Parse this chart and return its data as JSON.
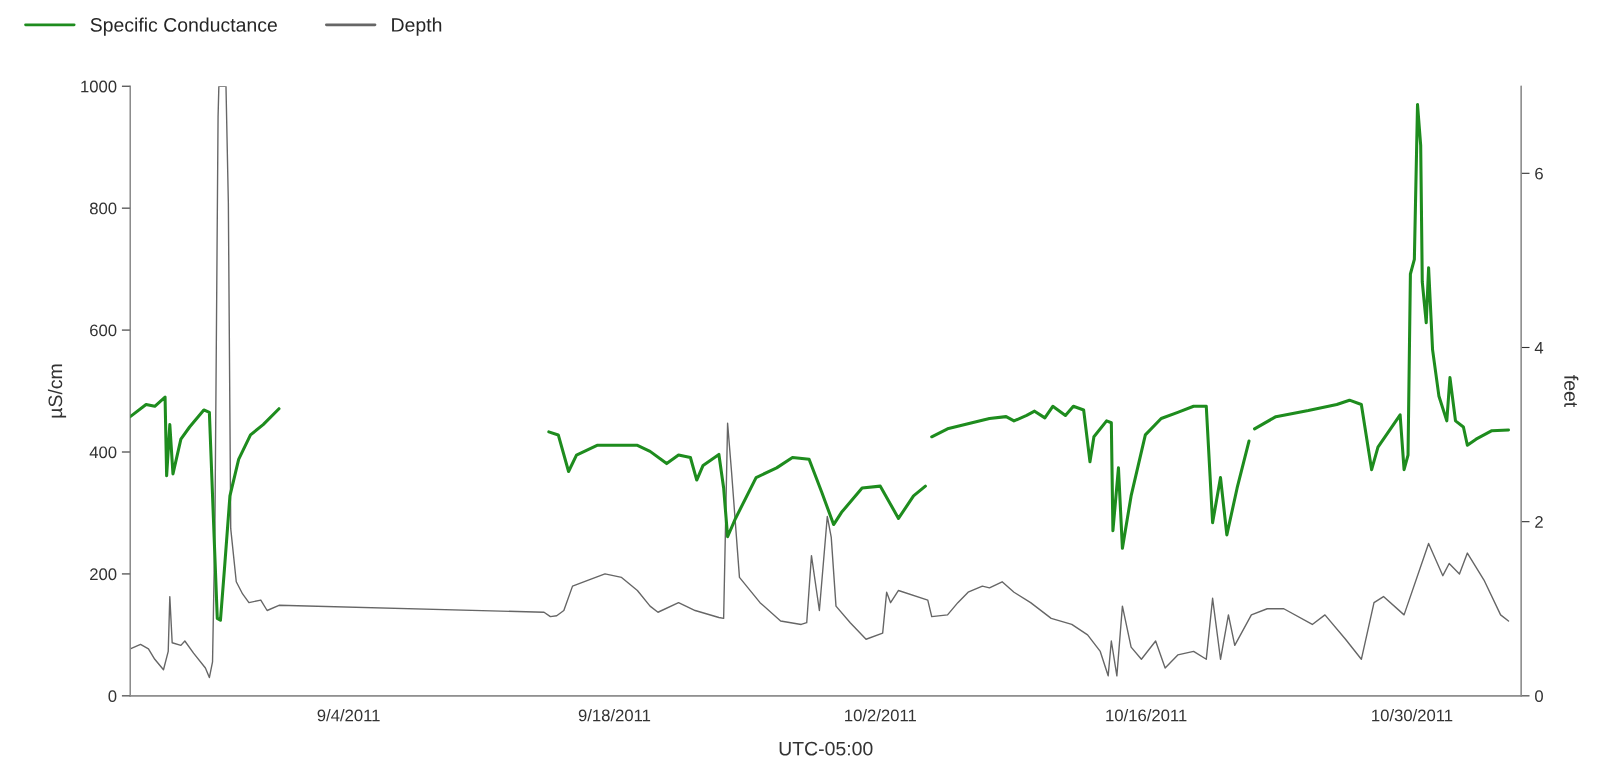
{
  "chart_data": {
    "type": "line",
    "xlabel": "UTC-05:00",
    "ylabel": "µS/cm",
    "y2label": "feet",
    "xlim": [
      "2011-08-23T12:00",
      "2011-11-04T18:00"
    ],
    "xticks": [
      {
        "value": "2011-09-04",
        "label": "9/4/2011"
      },
      {
        "value": "2011-09-18",
        "label": "9/18/2011"
      },
      {
        "value": "2011-10-02",
        "label": "10/2/2011"
      },
      {
        "value": "2011-10-16",
        "label": "10/16/2011"
      },
      {
        "value": "2011-10-30",
        "label": "10/30/2011"
      }
    ],
    "ylim": [
      0,
      1000
    ],
    "yticks": [
      0,
      200,
      400,
      600,
      800,
      1000
    ],
    "y2lim": [
      0,
      7
    ],
    "y2ticks": [
      0,
      2,
      4,
      6
    ],
    "grid": false,
    "legend": "top left",
    "marker": "none",
    "line_style": "solid",
    "series": [
      {
        "name": "Specific Conductance",
        "color": "#1e8c1e",
        "x": [
          "2011-08-23T12:00",
          "2011-08-24T08:00",
          "2011-08-24T19:00",
          "2011-08-25T08:00",
          "2011-08-25T10:00",
          "2011-08-25T14:00",
          "2011-08-25T18:00",
          "2011-08-26T04:00",
          "2011-08-26T15:00",
          "2011-08-27T09:00",
          "2011-08-27T16:00",
          "2011-08-27T22:00",
          "2011-08-28T02:00",
          "2011-08-28T06:00",
          "2011-08-28T11:00",
          "2011-08-28T18:00",
          "2011-08-29T05:00",
          "2011-08-29T20:00",
          "2011-08-30T12:00",
          "2011-08-31T08:00",
          "2011-09-07T00:00",
          "2011-09-14T13:00",
          "2011-09-15T01:00",
          "2011-09-15T14:00",
          "2011-09-16T00:00",
          "2011-09-17T02:00",
          "2011-09-18T04:00",
          "2011-09-19T05:00",
          "2011-09-19T21:00",
          "2011-09-20T18:00",
          "2011-09-21T09:00",
          "2011-09-22T00:00",
          "2011-09-22T08:00",
          "2011-09-22T16:00",
          "2011-09-23T12:00",
          "2011-09-23T18:00",
          "2011-09-23T23:00",
          "2011-09-24T09:00",
          "2011-09-25T11:00",
          "2011-09-26T13:00",
          "2011-09-27T09:00",
          "2011-09-28T06:00",
          "2011-09-28T22:00",
          "2011-09-29T13:00",
          "2011-09-29T23:00",
          "2011-10-01T01:00",
          "2011-10-02T00:00",
          "2011-10-02T23:00",
          "2011-10-03T18:00",
          "2011-10-04T09:00",
          "2011-10-04T13:00",
          "2011-10-04T17:00",
          "2011-10-05T13:00",
          "2011-10-06T20:00",
          "2011-10-07T18:00",
          "2011-10-08T15:00",
          "2011-10-09T01:00",
          "2011-10-09T17:00",
          "2011-10-10T03:00",
          "2011-10-10T16:00",
          "2011-10-11T02:00",
          "2011-10-11T18:00",
          "2011-10-12T04:00",
          "2011-10-12T17:00",
          "2011-10-13T01:00",
          "2011-10-13T06:00",
          "2011-10-13T22:00",
          "2011-10-14T04:00",
          "2011-10-14T06:00",
          "2011-10-14T13:00",
          "2011-10-14T18:00",
          "2011-10-15T05:00",
          "2011-10-15T23:00",
          "2011-10-16T19:00",
          "2011-10-17T16:00",
          "2011-10-18T12:00",
          "2011-10-19T04:00",
          "2011-10-19T12:00",
          "2011-10-19T22:00",
          "2011-10-20T06:00",
          "2011-10-20T19:00",
          "2011-10-21T10:00",
          "2011-10-21T14:00",
          "2011-10-21T17:00",
          "2011-10-22T20:00",
          "2011-10-24T13:00",
          "2011-10-26T01:00",
          "2011-10-26T17:00",
          "2011-10-27T08:00",
          "2011-10-27T21:00",
          "2011-10-28T05:00",
          "2011-10-29T09:00",
          "2011-10-29T14:00",
          "2011-10-29T19:00",
          "2011-10-29T22:00",
          "2011-10-30T03:00",
          "2011-10-30T07:00",
          "2011-10-30T11:00",
          "2011-10-30T13:00",
          "2011-10-30T18:00",
          "2011-10-30T21:00",
          "2011-10-31T02:00",
          "2011-10-31T10:00",
          "2011-10-31T20:00",
          "2011-11-01T00:00",
          "2011-11-01T07:00",
          "2011-11-01T17:00",
          "2011-11-01T22:00",
          "2011-11-02T09:00",
          "2011-11-03T05:00",
          "2011-11-04T02:00"
        ],
        "values": [
          458,
          478,
          475,
          490,
          361,
          445,
          364,
          421,
          441,
          469,
          465,
          261,
          127,
          124,
          207,
          328,
          388,
          428,
          445,
          471,
          null,
          433,
          428,
          368,
          395,
          411,
          411,
          411,
          401,
          381,
          395,
          391,
          354,
          378,
          396,
          341,
          261,
          291,
          358,
          374,
          391,
          388,
          334,
          281,
          301,
          341,
          344,
          291,
          328,
          344,
          null,
          425,
          438,
          448,
          455,
          458,
          451,
          460,
          467,
          456,
          475,
          460,
          475,
          469,
          384,
          425,
          451,
          448,
          271,
          374,
          242,
          328,
          428,
          455,
          465,
          475,
          475,
          284,
          358,
          264,
          341,
          418,
          null,
          438,
          458,
          468,
          478,
          485,
          478,
          371,
          408,
          461,
          371,
          395,
          692,
          716,
          970,
          903,
          679,
          612,
          702,
          568,
          492,
          451,
          522,
          451,
          441,
          411,
          421,
          435,
          436
        ]
      },
      {
        "name": "Depth",
        "color": "#666666",
        "axis": "y2",
        "x": [
          "2011-08-23T12:00",
          "2011-08-24T01:00",
          "2011-08-24T11:00",
          "2011-08-24T19:00",
          "2011-08-25T06:00",
          "2011-08-25T12:00",
          "2011-08-25T14:00",
          "2011-08-25T17:00",
          "2011-08-26T04:00",
          "2011-08-26T09:00",
          "2011-08-26T20:00",
          "2011-08-27T11:00",
          "2011-08-27T16:00",
          "2011-08-27T20:00",
          "2011-08-27T23:00",
          "2011-08-28T03:00",
          "2011-08-28T04:00",
          "2011-08-28T13:00",
          "2011-08-28T16:00",
          "2011-08-28T19:00",
          "2011-08-29T02:00",
          "2011-08-29T10:00",
          "2011-08-29T18:00",
          "2011-08-30T09:00",
          "2011-08-30T17:00",
          "2011-08-31T08:00",
          "2011-09-14T07:00",
          "2011-09-14T15:00",
          "2011-09-14T23:00",
          "2011-09-15T08:00",
          "2011-09-15T19:00",
          "2011-09-16T15:00",
          "2011-09-17T12:00",
          "2011-09-18T09:00",
          "2011-09-19T05:00",
          "2011-09-19T21:00",
          "2011-09-20T07:00",
          "2011-09-21T09:00",
          "2011-09-22T06:00",
          "2011-09-23T12:00",
          "2011-09-23T18:00",
          "2011-09-23T23:00",
          "2011-09-24T04:00",
          "2011-09-24T14:00",
          "2011-09-25T16:00",
          "2011-09-26T18:00",
          "2011-09-27T20:00",
          "2011-09-28T03:00",
          "2011-09-28T09:00",
          "2011-09-28T19:00",
          "2011-09-29T05:00",
          "2011-09-29T10:00",
          "2011-09-29T16:00",
          "2011-09-30T10:00",
          "2011-10-01T06:00",
          "2011-10-02T03:00",
          "2011-10-02T08:00",
          "2011-10-02T13:00",
          "2011-10-02T23:00",
          "2011-10-04T12:00",
          "2011-10-04T17:00",
          "2011-10-05T13:00",
          "2011-10-06T02:00",
          "2011-10-06T15:00",
          "2011-10-07T09:00",
          "2011-10-07T18:00",
          "2011-10-08T10:00",
          "2011-10-09T01:00",
          "2011-10-09T22:00",
          "2011-10-11T00:00",
          "2011-10-12T02:00",
          "2011-10-12T22:00",
          "2011-10-13T14:00",
          "2011-10-14T00:00",
          "2011-10-14T04:00",
          "2011-10-14T11:00",
          "2011-10-14T18:00",
          "2011-10-15T05:00",
          "2011-10-15T18:00",
          "2011-10-16T12:00",
          "2011-10-17T00:00",
          "2011-10-17T16:00",
          "2011-10-18T12:00",
          "2011-10-19T04:00",
          "2011-10-19T12:00",
          "2011-10-19T22:00",
          "2011-10-20T08:00",
          "2011-10-20T16:00",
          "2011-10-21T13:00",
          "2011-10-22T09:00",
          "2011-10-23T06:00",
          "2011-10-24T18:00",
          "2011-10-25T10:00",
          "2011-10-26T12:00",
          "2011-10-27T08:00",
          "2011-10-28T00:00",
          "2011-10-28T12:00",
          "2011-10-29T14:00",
          "2011-10-30T21:00",
          "2011-10-31T15:00",
          "2011-10-31T23:00",
          "2011-11-01T12:00",
          "2011-11-01T22:00",
          "2011-11-02T19:00",
          "2011-11-03T16:00",
          "2011-11-04T02:00"
        ],
        "values": [
          0.54,
          0.59,
          0.54,
          0.42,
          0.3,
          0.51,
          1.14,
          0.61,
          0.58,
          0.63,
          0.49,
          0.32,
          0.21,
          0.39,
          1.92,
          6.65,
          7.0,
          7.0,
          5.66,
          1.92,
          1.31,
          1.17,
          1.07,
          1.1,
          0.98,
          1.04,
          0.96,
          0.91,
          0.92,
          0.98,
          1.26,
          1.33,
          1.4,
          1.36,
          1.21,
          1.03,
          0.96,
          1.07,
          0.98,
          0.9,
          0.89,
          3.13,
          2.57,
          1.36,
          1.07,
          0.86,
          0.82,
          0.84,
          1.61,
          0.98,
          2.06,
          1.82,
          1.03,
          0.84,
          0.65,
          0.72,
          1.19,
          1.07,
          1.21,
          1.1,
          0.91,
          0.93,
          1.07,
          1.19,
          1.26,
          1.24,
          1.31,
          1.19,
          1.07,
          0.89,
          0.82,
          0.7,
          0.51,
          0.23,
          0.63,
          0.23,
          1.03,
          0.56,
          0.42,
          0.63,
          0.32,
          0.47,
          0.51,
          0.42,
          1.12,
          0.42,
          0.93,
          0.58,
          0.93,
          1.0,
          1.0,
          0.82,
          0.93,
          0.65,
          0.42,
          1.07,
          1.14,
          0.93,
          1.75,
          1.38,
          1.52,
          1.4,
          1.64,
          1.33,
          0.93,
          0.86
        ]
      }
    ]
  }
}
